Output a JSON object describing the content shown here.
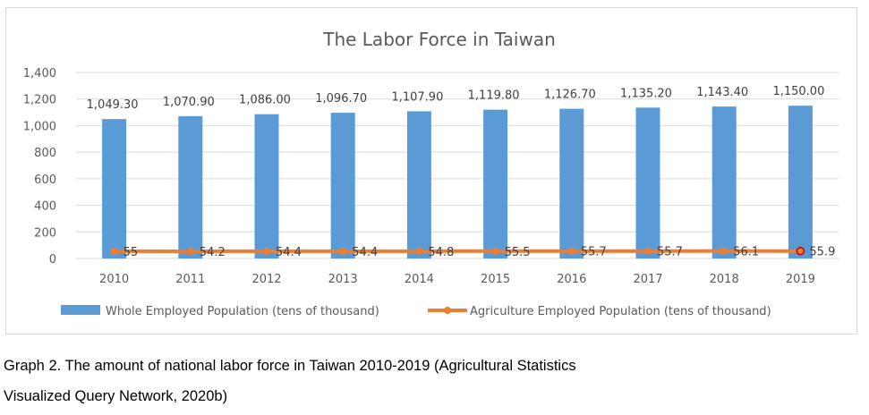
{
  "chart_data": {
    "type": "bar",
    "title": "The Labor Force in Taiwan",
    "categories": [
      "2010",
      "2011",
      "2012",
      "2013",
      "2014",
      "2015",
      "2016",
      "2017",
      "2018",
      "2019"
    ],
    "series": [
      {
        "name": "Whole Employed Population (tens of thousand)",
        "type": "bar",
        "values": [
          1049.3,
          1070.9,
          1086.0,
          1096.7,
          1107.9,
          1119.8,
          1126.7,
          1135.2,
          1143.4,
          1150.0
        ],
        "labels": [
          "1,049.30",
          "1,070.90",
          "1,086.00",
          "1,096.70",
          "1,107.90",
          "1,119.80",
          "1,126.70",
          "1,135.20",
          "1,143.40",
          "1,150.00"
        ],
        "color": "#5b9bd5"
      },
      {
        "name": "Agriculture Employed Population (tens of thousand)",
        "type": "line",
        "values": [
          55,
          54.2,
          54.4,
          54.4,
          54.8,
          55.5,
          55.7,
          55.7,
          56.1,
          55.9
        ],
        "labels": [
          "55",
          "54.2",
          "54.4",
          "54.4",
          "54.8",
          "55.5",
          "55.7",
          "55.7",
          "56.1",
          "55.9"
        ],
        "color": "#ed7d31"
      }
    ],
    "ylim": [
      0,
      1400
    ],
    "yticks": [
      0,
      200,
      400,
      600,
      800,
      1000,
      1200,
      1400
    ],
    "ytick_labels": [
      "0",
      "200",
      "400",
      "600",
      "800",
      "1,000",
      "1,200",
      "1,400"
    ],
    "grid": true,
    "legend": "bottom"
  },
  "caption": {
    "line1": "Graph 2. The amount of national labor force in Taiwan 2010-2019 (Agricultural Statistics",
    "line2": "Visualized Query Network, 2020b)"
  }
}
